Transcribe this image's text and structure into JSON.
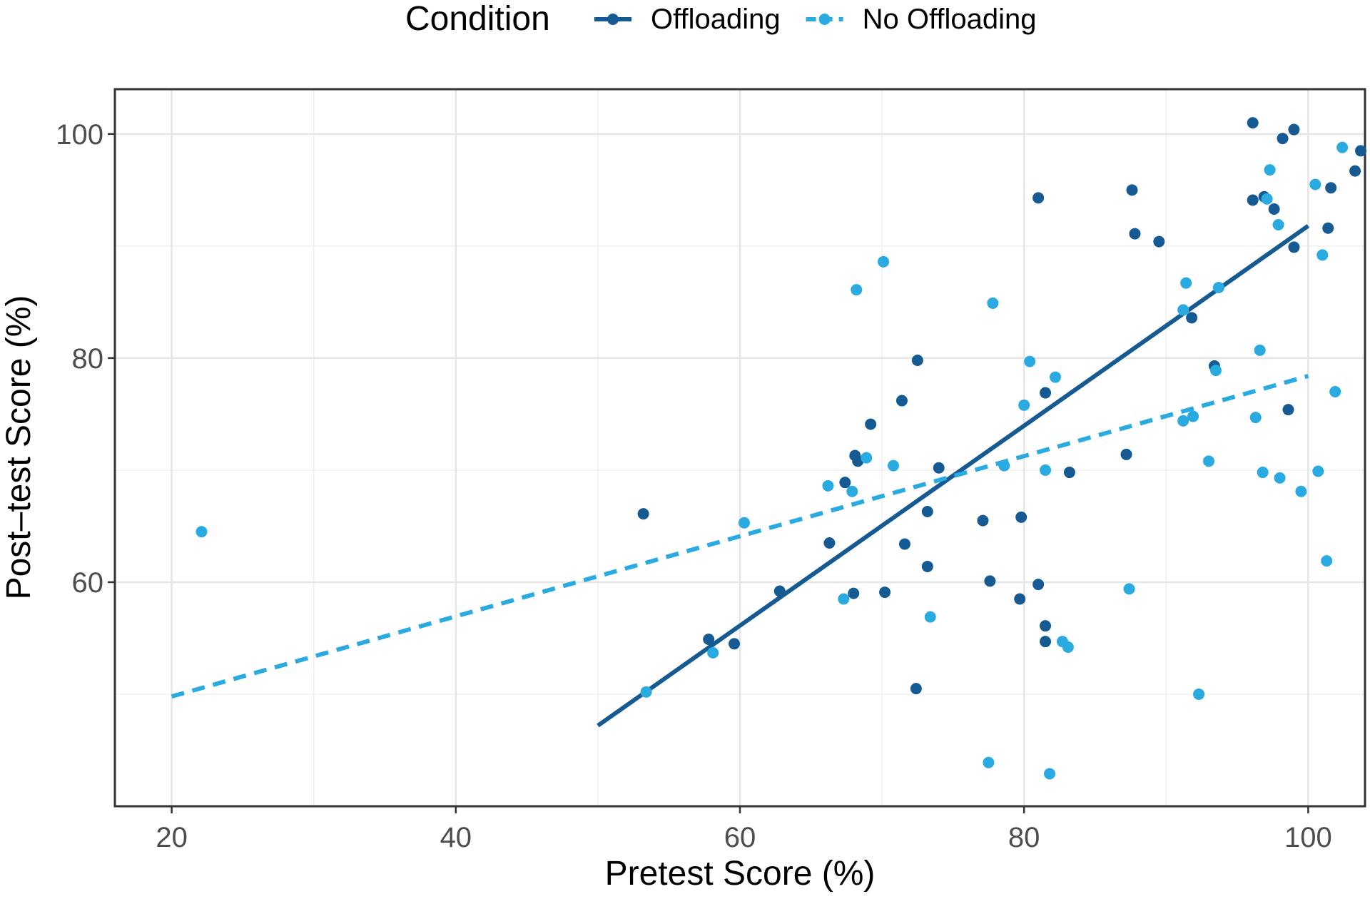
{
  "chart_data": {
    "type": "scatter",
    "title": "",
    "xlabel": "Pretest Score (%)",
    "ylabel": "Post–test Score (%)",
    "xlim": [
      16,
      104
    ],
    "ylim": [
      40,
      104
    ],
    "xticks": [
      20,
      40,
      60,
      80,
      100
    ],
    "yticks": [
      60,
      80,
      100
    ],
    "grid": true,
    "legend": {
      "title": "Condition",
      "position": "top"
    },
    "series": [
      {
        "name": "Offloading",
        "color": "#155a93",
        "line_style": "solid",
        "fit": {
          "x": [
            50,
            100
          ],
          "y": [
            47.2,
            91.8
          ]
        },
        "points": [
          [
            53.2,
            66.1
          ],
          [
            57.8,
            54.9
          ],
          [
            59.6,
            54.5
          ],
          [
            62.8,
            59.2
          ],
          [
            66.3,
            63.5
          ],
          [
            67.4,
            68.9
          ],
          [
            68.1,
            71.3
          ],
          [
            68.3,
            70.8
          ],
          [
            68.0,
            59.0
          ],
          [
            69.2,
            74.1
          ],
          [
            70.2,
            59.1
          ],
          [
            71.4,
            76.2
          ],
          [
            71.6,
            63.4
          ],
          [
            72.5,
            79.8
          ],
          [
            72.4,
            50.5
          ],
          [
            73.2,
            66.3
          ],
          [
            73.2,
            61.4
          ],
          [
            74.0,
            70.2
          ],
          [
            77.1,
            65.5
          ],
          [
            77.6,
            60.1
          ],
          [
            79.7,
            58.5
          ],
          [
            79.8,
            65.8
          ],
          [
            81.0,
            94.3
          ],
          [
            81.0,
            59.8
          ],
          [
            81.5,
            76.9
          ],
          [
            81.5,
            56.1
          ],
          [
            81.5,
            54.7
          ],
          [
            83.2,
            69.8
          ],
          [
            87.2,
            71.4
          ],
          [
            87.6,
            95.0
          ],
          [
            87.8,
            91.1
          ],
          [
            89.5,
            90.4
          ],
          [
            91.8,
            83.6
          ],
          [
            93.4,
            79.3
          ],
          [
            96.1,
            101.0
          ],
          [
            96.1,
            94.1
          ],
          [
            96.9,
            94.4
          ],
          [
            97.6,
            93.3
          ],
          [
            98.2,
            99.6
          ],
          [
            98.6,
            75.4
          ],
          [
            99.0,
            100.4
          ],
          [
            99.0,
            89.9
          ],
          [
            101.6,
            95.2
          ],
          [
            101.4,
            91.6
          ],
          [
            103.3,
            96.7
          ],
          [
            103.7,
            98.5
          ]
        ]
      },
      {
        "name": "No Offloading",
        "color": "#29aae1",
        "line_style": "dashed",
        "fit": {
          "x": [
            20,
            100
          ],
          "y": [
            49.8,
            78.4
          ]
        },
        "points": [
          [
            22.1,
            64.5
          ],
          [
            53.4,
            50.2
          ],
          [
            58.1,
            53.7
          ],
          [
            60.3,
            65.3
          ],
          [
            66.2,
            68.6
          ],
          [
            67.3,
            58.5
          ],
          [
            67.9,
            68.1
          ],
          [
            68.2,
            86.1
          ],
          [
            68.9,
            71.1
          ],
          [
            70.1,
            88.6
          ],
          [
            70.8,
            70.4
          ],
          [
            73.4,
            56.9
          ],
          [
            77.5,
            43.9
          ],
          [
            77.8,
            84.9
          ],
          [
            78.6,
            70.4
          ],
          [
            80.0,
            75.8
          ],
          [
            80.4,
            79.7
          ],
          [
            81.5,
            70.0
          ],
          [
            81.8,
            42.9
          ],
          [
            82.2,
            78.3
          ],
          [
            82.7,
            54.7
          ],
          [
            83.1,
            54.2
          ],
          [
            87.4,
            59.4
          ],
          [
            91.2,
            74.4
          ],
          [
            91.4,
            86.7
          ],
          [
            91.2,
            84.3
          ],
          [
            91.9,
            74.8
          ],
          [
            92.3,
            50.0
          ],
          [
            93.0,
            70.8
          ],
          [
            93.5,
            78.9
          ],
          [
            93.7,
            86.3
          ],
          [
            96.3,
            74.7
          ],
          [
            96.6,
            80.7
          ],
          [
            96.8,
            69.8
          ],
          [
            97.1,
            94.2
          ],
          [
            97.3,
            96.8
          ],
          [
            98.0,
            69.3
          ],
          [
            97.9,
            91.9
          ],
          [
            99.5,
            68.1
          ],
          [
            100.5,
            95.5
          ],
          [
            100.7,
            69.9
          ],
          [
            101.0,
            89.2
          ],
          [
            101.3,
            61.9
          ],
          [
            101.9,
            77.0
          ],
          [
            102.4,
            98.8
          ]
        ]
      }
    ]
  }
}
